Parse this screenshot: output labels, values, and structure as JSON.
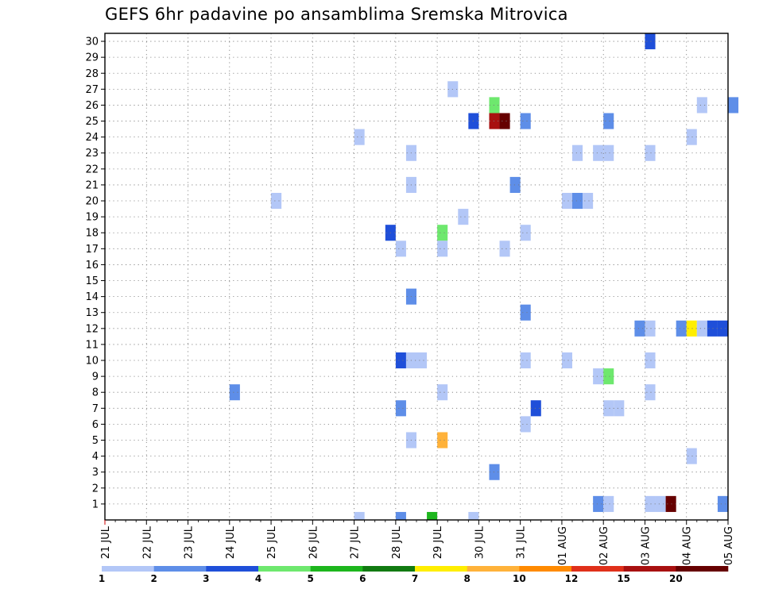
{
  "chart_data": {
    "type": "heatmap",
    "title": "GEFS 6hr padavine po ansamblima Sremska Mitrovica",
    "xlabel": "",
    "ylabel": "",
    "x_ticks": [
      "21 JUL",
      "22 JUL",
      "23 JUL",
      "24 JUL",
      "25 JUL",
      "26 JUL",
      "27 JUL",
      "28 JUL",
      "29 JUL",
      "30 JUL",
      "31 JUL",
      "01 AUG",
      "02 AUG",
      "03 AUG",
      "04 AUG",
      "05 AUG"
    ],
    "x_step_hours": 6,
    "y_ticks": [
      1,
      2,
      3,
      4,
      5,
      6,
      7,
      8,
      9,
      10,
      11,
      12,
      13,
      14,
      15,
      16,
      17,
      18,
      19,
      20,
      21,
      22,
      23,
      24,
      25,
      26,
      27,
      28,
      29,
      30
    ],
    "ylim": [
      0,
      30
    ],
    "grid": true,
    "color_scale": {
      "levels": [
        1,
        2,
        3,
        4,
        5,
        6,
        7,
        8,
        10,
        12,
        15,
        20
      ],
      "colors": [
        "#b3c7f7",
        "#5e8ee8",
        "#1f4fd9",
        "#6ee86e",
        "#1db61d",
        "#117a11",
        "#ffee00",
        "#ffb23a",
        "#ff8a00",
        "#e0301a",
        "#a81010",
        "#660000"
      ]
    },
    "cells": [
      {
        "member": 30,
        "time": "03 AUG 00",
        "bin": 3
      },
      {
        "member": 27,
        "time": "29 JUL 06",
        "bin": 1
      },
      {
        "member": 26,
        "time": "30 JUL 06",
        "bin": 4
      },
      {
        "member": 26,
        "time": "04 AUG 06",
        "bin": 1
      },
      {
        "member": 26,
        "time": "05 AUG 00",
        "bin": 2
      },
      {
        "member": 25,
        "time": "29 JUL 18",
        "bin": 3
      },
      {
        "member": 25,
        "time": "30 JUL 06",
        "bin": 11
      },
      {
        "member": 25,
        "time": "30 JUL 12",
        "bin": 12
      },
      {
        "member": 25,
        "time": "31 JUL 00",
        "bin": 2
      },
      {
        "member": 25,
        "time": "02 AUG 00",
        "bin": 2
      },
      {
        "member": 24,
        "time": "27 JUL 00",
        "bin": 1
      },
      {
        "member": 24,
        "time": "04 AUG 00",
        "bin": 1
      },
      {
        "member": 23,
        "time": "28 JUL 06",
        "bin": 1
      },
      {
        "member": 23,
        "time": "01 AUG 06",
        "bin": 1
      },
      {
        "member": 23,
        "time": "01 AUG 18",
        "bin": 1
      },
      {
        "member": 23,
        "time": "02 AUG 00",
        "bin": 1
      },
      {
        "member": 23,
        "time": "03 AUG 00",
        "bin": 1
      },
      {
        "member": 21,
        "time": "28 JUL 06",
        "bin": 1
      },
      {
        "member": 21,
        "time": "30 JUL 18",
        "bin": 2
      },
      {
        "member": 20,
        "time": "25 JUL 00",
        "bin": 1
      },
      {
        "member": 20,
        "time": "01 AUG 00",
        "bin": 1
      },
      {
        "member": 20,
        "time": "01 AUG 06",
        "bin": 2
      },
      {
        "member": 20,
        "time": "01 AUG 12",
        "bin": 1
      },
      {
        "member": 19,
        "time": "29 JUL 12",
        "bin": 1
      },
      {
        "member": 18,
        "time": "27 JUL 18",
        "bin": 3
      },
      {
        "member": 18,
        "time": "29 JUL 00",
        "bin": 4
      },
      {
        "member": 18,
        "time": "31 JUL 00",
        "bin": 1
      },
      {
        "member": 17,
        "time": "28 JUL 00",
        "bin": 1
      },
      {
        "member": 17,
        "time": "29 JUL 00",
        "bin": 1
      },
      {
        "member": 17,
        "time": "30 JUL 12",
        "bin": 1
      },
      {
        "member": 14,
        "time": "28 JUL 06",
        "bin": 2
      },
      {
        "member": 13,
        "time": "31 JUL 00",
        "bin": 2
      },
      {
        "member": 12,
        "time": "02 AUG 18",
        "bin": 2
      },
      {
        "member": 12,
        "time": "03 AUG 00",
        "bin": 1
      },
      {
        "member": 12,
        "time": "03 AUG 18",
        "bin": 2
      },
      {
        "member": 12,
        "time": "04 AUG 00",
        "bin": 7
      },
      {
        "member": 12,
        "time": "04 AUG 06",
        "bin": 1
      },
      {
        "member": 12,
        "time": "04 AUG 12",
        "bin": 3
      },
      {
        "member": 12,
        "time": "04 AUG 18",
        "bin": 3
      },
      {
        "member": 10,
        "time": "28 JUL 00",
        "bin": 3
      },
      {
        "member": 10,
        "time": "28 JUL 06",
        "bin": 1
      },
      {
        "member": 10,
        "time": "28 JUL 12",
        "bin": 1
      },
      {
        "member": 10,
        "time": "31 JUL 00",
        "bin": 1
      },
      {
        "member": 10,
        "time": "01 AUG 00",
        "bin": 1
      },
      {
        "member": 10,
        "time": "03 AUG 00",
        "bin": 1
      },
      {
        "member": 9,
        "time": "01 AUG 18",
        "bin": 1
      },
      {
        "member": 9,
        "time": "02 AUG 00",
        "bin": 4
      },
      {
        "member": 8,
        "time": "24 JUL 00",
        "bin": 2
      },
      {
        "member": 8,
        "time": "29 JUL 00",
        "bin": 1
      },
      {
        "member": 8,
        "time": "03 AUG 00",
        "bin": 1
      },
      {
        "member": 7,
        "time": "28 JUL 00",
        "bin": 2
      },
      {
        "member": 7,
        "time": "31 JUL 06",
        "bin": 3
      },
      {
        "member": 7,
        "time": "02 AUG 00",
        "bin": 1
      },
      {
        "member": 7,
        "time": "02 AUG 06",
        "bin": 1
      },
      {
        "member": 6,
        "time": "31 JUL 00",
        "bin": 1
      },
      {
        "member": 5,
        "time": "28 JUL 06",
        "bin": 1
      },
      {
        "member": 5,
        "time": "29 JUL 00",
        "bin": 8
      },
      {
        "member": 4,
        "time": "04 AUG 00",
        "bin": 1
      },
      {
        "member": 3,
        "time": "30 JUL 06",
        "bin": 2
      },
      {
        "member": 1,
        "time": "01 AUG 18",
        "bin": 2
      },
      {
        "member": 1,
        "time": "02 AUG 00",
        "bin": 1
      },
      {
        "member": 1,
        "time": "03 AUG 00",
        "bin": 1
      },
      {
        "member": 1,
        "time": "03 AUG 06",
        "bin": 1
      },
      {
        "member": 1,
        "time": "03 AUG 12",
        "bin": 12
      },
      {
        "member": 1,
        "time": "04 AUG 18",
        "bin": 2
      },
      {
        "member": 0,
        "time": "27 JUL 00",
        "bin": 1
      },
      {
        "member": 0,
        "time": "28 JUL 00",
        "bin": 2
      },
      {
        "member": 0,
        "time": "29 JUL 18",
        "bin": 1
      },
      {
        "member": 0,
        "time": "28 JUL 18",
        "bin": 5
      }
    ]
  }
}
